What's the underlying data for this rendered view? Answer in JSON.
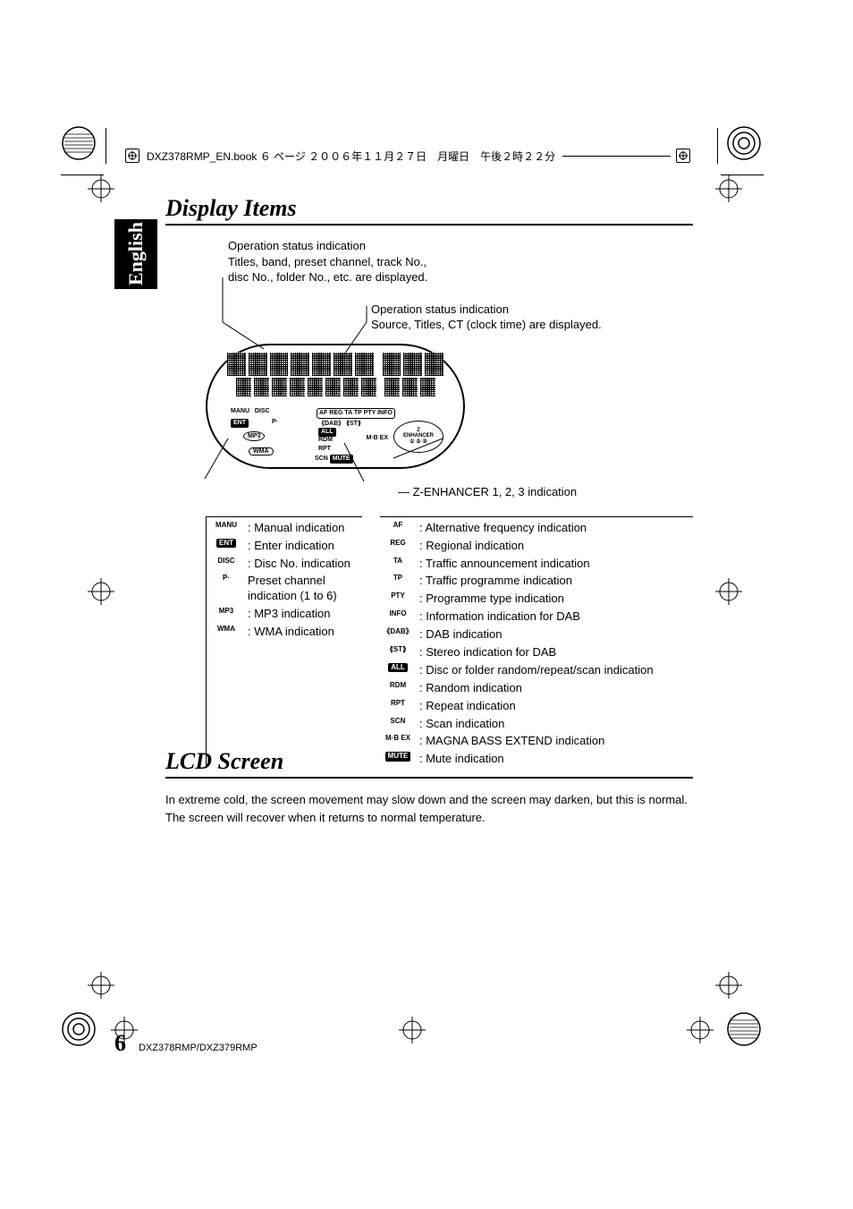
{
  "header": {
    "filepath": "DXZ378RMP_EN.book  ６ ページ  ２００６年１１月２７日　月曜日　午後２時２２分"
  },
  "lang_tab": "English",
  "section1": {
    "title": "Display Items",
    "intro_l1": "Operation status indication",
    "intro_l2": "Titles, band, preset channel, track No.,",
    "intro_l3": "disc No., folder No., etc. are displayed.",
    "callout2_l1": "Operation status indication",
    "callout2_l2": "Source, Titles, CT (clock time) are displayed.",
    "z_enhancer": "Z-ENHANCER 1, 2, 3 indication",
    "left_legend": [
      {
        "icon": "MANU",
        "text": ": Manual indication"
      },
      {
        "icon": "ENT",
        "solid": true,
        "text": ": Enter indication"
      },
      {
        "icon": "DISC",
        "text": ": Disc No. indication"
      },
      {
        "icon": "P·",
        "text": "  Preset channel indication (1 to 6)"
      },
      {
        "icon": "MP3",
        "text": ": MP3 indication"
      },
      {
        "icon": "WMA",
        "text": ": WMA indication"
      }
    ],
    "right_legend": [
      {
        "icon": "AF",
        "text": ": Alternative frequency  indication"
      },
      {
        "icon": "REG",
        "text": ": Regional indication"
      },
      {
        "icon": "TA",
        "text": ": Traffic announcement indication"
      },
      {
        "icon": "TP",
        "text": ": Traffic programme indication"
      },
      {
        "icon": "PTY",
        "text": ": Programme type indication"
      },
      {
        "icon": "INFO",
        "text": ": Information indication for DAB"
      },
      {
        "icon": "《DAB》",
        "text": ": DAB indication"
      },
      {
        "icon": "⟪ST⟫",
        "text": ": Stereo indication for DAB"
      },
      {
        "icon": "ALL",
        "solid": true,
        "text": ": Disc or folder random/repeat/scan indication"
      },
      {
        "icon": "RDM",
        "text": ": Random indication"
      },
      {
        "icon": "RPT",
        "text": ": Repeat indication"
      },
      {
        "icon": "SCN",
        "text": ": Scan indication"
      },
      {
        "icon": "M·B EX",
        "text": ": MAGNA BASS EXTEND indication"
      },
      {
        "icon": "MUTE",
        "solid": true,
        "text": ": Mute indication"
      }
    ],
    "display_indicators": {
      "row1_left": "MANU",
      "row1_disc": "DISC",
      "row1_right": "AF REG TA TP PTY INFO",
      "row2_ent": "ENT",
      "row2_p": "P·",
      "row2_dab": "《DAB》  ⟪ST⟫",
      "mp3": "MP3",
      "wma": "WMA",
      "all": "ALL",
      "rdm": "RDM",
      "rpt": "RPT",
      "scn": "SCN",
      "mute": "MUTE",
      "mbex": "M·B EX",
      "zenh_top": "Z",
      "zenh_mid": "ENHANCER",
      "zenh_bot": "① ② ③"
    }
  },
  "section2": {
    "title": "LCD Screen",
    "body": "In extreme cold, the screen movement may slow down and the screen may darken, but this is normal. The screen will recover when it returns to normal temperature."
  },
  "footer": {
    "page_no": "6",
    "model": "DXZ378RMP/DXZ379RMP"
  },
  "colors": {
    "text": "#000000",
    "bg": "#ffffff"
  }
}
